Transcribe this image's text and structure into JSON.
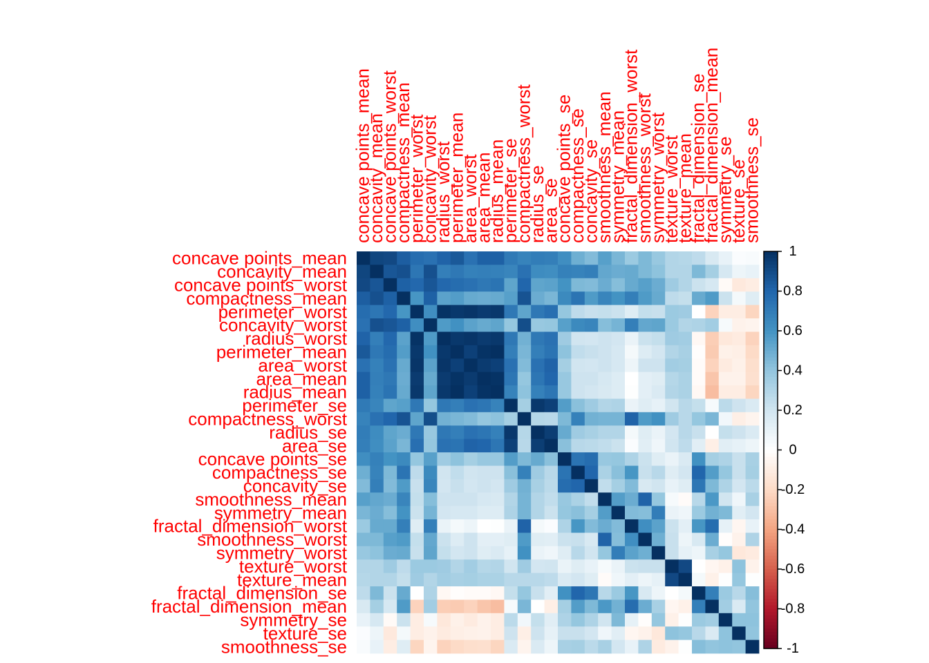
{
  "chart_data": {
    "type": "heatmap",
    "title": "",
    "variables": [
      "concave points_mean",
      "concavity_mean",
      "concave points_worst",
      "compactness_mean",
      "perimeter_worst",
      "concavity_worst",
      "radius_worst",
      "perimeter_mean",
      "area_worst",
      "area_mean",
      "radius_mean",
      "perimeter_se",
      "compactness_worst",
      "radius_se",
      "area_se",
      "concave points_se",
      "compactness_se",
      "concavity_se",
      "smoothness_mean",
      "symmetry_mean",
      "fractal_dimension_worst",
      "smoothness_worst",
      "symmetry_worst",
      "texture_worst",
      "texture_mean",
      "fractal_dimension_se",
      "fractal_dimension_mean",
      "symmetry_se",
      "texture_se",
      "smoothness_se"
    ],
    "matrix": [
      [
        1,
        0.92,
        0.91,
        0.83,
        0.77,
        0.75,
        0.81,
        0.85,
        0.75,
        0.82,
        0.82,
        0.71,
        0.67,
        0.7,
        0.69,
        0.62,
        0.49,
        0.44,
        0.55,
        0.46,
        0.37,
        0.45,
        0.38,
        0.3,
        0.29,
        0.26,
        0.17,
        0.1,
        0.02,
        0.03
      ],
      [
        0.92,
        1,
        0.86,
        0.88,
        0.73,
        0.88,
        0.69,
        0.72,
        0.68,
        0.69,
        0.68,
        0.66,
        0.75,
        0.63,
        0.62,
        0.68,
        0.67,
        0.69,
        0.52,
        0.5,
        0.51,
        0.45,
        0.41,
        0.3,
        0.3,
        0.45,
        0.34,
        0.18,
        0.08,
        0.1
      ],
      [
        0.91,
        0.86,
        1,
        0.82,
        0.79,
        0.86,
        0.79,
        0.77,
        0.75,
        0.72,
        0.74,
        0.53,
        0.8,
        0.53,
        0.54,
        0.6,
        0.45,
        0.44,
        0.5,
        0.43,
        0.51,
        0.55,
        0.5,
        0.36,
        0.3,
        0.22,
        0.18,
        -0.03,
        -0.12,
        -0.1
      ],
      [
        0.83,
        0.88,
        0.82,
        1,
        0.59,
        0.82,
        0.54,
        0.56,
        0.51,
        0.5,
        0.51,
        0.55,
        0.87,
        0.5,
        0.46,
        0.64,
        0.74,
        0.57,
        0.66,
        0.6,
        0.69,
        0.57,
        0.51,
        0.26,
        0.24,
        0.51,
        0.57,
        0.22,
        0.05,
        0.14
      ],
      [
        0.77,
        0.73,
        0.79,
        0.59,
        1,
        0.62,
        0.99,
        0.97,
        0.98,
        0.96,
        0.97,
        0.72,
        0.53,
        0.72,
        0.76,
        0.39,
        0.26,
        0.23,
        0.24,
        0.22,
        0.14,
        0.24,
        0.23,
        0.37,
        0.36,
        0,
        -0.23,
        -0.1,
        -0.1,
        -0.22
      ],
      [
        0.75,
        0.88,
        0.86,
        0.82,
        0.62,
        1,
        0.57,
        0.61,
        0.54,
        0.51,
        0.53,
        0.39,
        0.89,
        0.38,
        0.39,
        0.55,
        0.64,
        0.66,
        0.43,
        0.47,
        0.69,
        0.52,
        0.53,
        0.37,
        0.3,
        0.31,
        0.35,
        0.04,
        -0.07,
        -0.06
      ],
      [
        0.81,
        0.69,
        0.79,
        0.54,
        0.99,
        0.57,
        1,
        0.97,
        0.98,
        0.96,
        0.97,
        0.72,
        0.48,
        0.72,
        0.75,
        0.36,
        0.2,
        0.19,
        0.21,
        0.19,
        0.09,
        0.22,
        0.24,
        0.36,
        0.35,
        -0.04,
        -0.25,
        -0.13,
        -0.11,
        -0.23
      ],
      [
        0.85,
        0.72,
        0.77,
        0.56,
        0.97,
        0.61,
        0.97,
        1,
        0.94,
        0.99,
        1,
        0.69,
        0.46,
        0.69,
        0.74,
        0.41,
        0.25,
        0.23,
        0.21,
        0.18,
        0.05,
        0.15,
        0.19,
        0.3,
        0.33,
        -0.01,
        -0.26,
        -0.08,
        -0.09,
        -0.2
      ],
      [
        0.75,
        0.68,
        0.75,
        0.51,
        0.98,
        0.54,
        0.98,
        0.94,
        1,
        0.96,
        0.94,
        0.75,
        0.44,
        0.75,
        0.81,
        0.34,
        0.2,
        0.19,
        0.21,
        0.18,
        0.08,
        0.21,
        0.21,
        0.35,
        0.34,
        -0.02,
        -0.23,
        -0.11,
        -0.08,
        -0.18
      ],
      [
        0.82,
        0.69,
        0.72,
        0.5,
        0.96,
        0.51,
        0.96,
        0.99,
        0.96,
        1,
        0.99,
        0.73,
        0.39,
        0.73,
        0.8,
        0.38,
        0.21,
        0.21,
        0.18,
        0.15,
        0,
        0.12,
        0.14,
        0.29,
        0.32,
        -0.02,
        -0.28,
        -0.07,
        -0.07,
        -0.17
      ],
      [
        0.82,
        0.68,
        0.74,
        0.51,
        0.97,
        0.53,
        0.97,
        1,
        0.94,
        0.99,
        1,
        0.67,
        0.41,
        0.68,
        0.73,
        0.38,
        0.21,
        0.19,
        0.17,
        0.15,
        0.01,
        0.12,
        0.16,
        0.3,
        0.32,
        -0.04,
        -0.31,
        -0.1,
        -0.1,
        -0.22
      ],
      [
        0.71,
        0.66,
        0.53,
        0.55,
        0.72,
        0.39,
        0.72,
        0.69,
        0.75,
        0.73,
        0.67,
        1,
        0.34,
        0.97,
        0.94,
        0.56,
        0.42,
        0.36,
        0.3,
        0.31,
        0.09,
        0.14,
        0.11,
        0.2,
        0.28,
        0.24,
        0.04,
        0.27,
        0.21,
        0.16
      ],
      [
        0.67,
        0.75,
        0.8,
        0.87,
        0.53,
        0.89,
        0.48,
        0.46,
        0.44,
        0.39,
        0.41,
        0.34,
        1,
        0.29,
        0.28,
        0.45,
        0.68,
        0.48,
        0.47,
        0.47,
        0.81,
        0.57,
        0.61,
        0.36,
        0.28,
        0.39,
        0.46,
        0.06,
        -0.09,
        -0.06
      ],
      [
        0.7,
        0.63,
        0.53,
        0.5,
        0.72,
        0.38,
        0.72,
        0.69,
        0.75,
        0.73,
        0.68,
        0.97,
        0.29,
        1,
        0.95,
        0.51,
        0.36,
        0.33,
        0.3,
        0.3,
        0.05,
        0.14,
        0.09,
        0.19,
        0.28,
        0.23,
        0,
        0.24,
        0.21,
        0.16
      ],
      [
        0.69,
        0.62,
        0.54,
        0.46,
        0.76,
        0.39,
        0.75,
        0.74,
        0.81,
        0.8,
        0.73,
        0.94,
        0.28,
        0.95,
        1,
        0.42,
        0.28,
        0.27,
        0.25,
        0.22,
        0.02,
        0.13,
        0.07,
        0.2,
        0.26,
        0.13,
        -0.09,
        0.13,
        0.11,
        0.08
      ],
      [
        0.62,
        0.68,
        0.6,
        0.64,
        0.39,
        0.55,
        0.36,
        0.41,
        0.34,
        0.38,
        0.38,
        0.56,
        0.45,
        0.51,
        0.42,
        1,
        0.74,
        0.77,
        0.38,
        0.39,
        0.31,
        0.22,
        0.14,
        0.09,
        0.16,
        0.61,
        0.34,
        0.31,
        0.23,
        0.33
      ],
      [
        0.49,
        0.67,
        0.45,
        0.74,
        0.26,
        0.64,
        0.2,
        0.25,
        0.2,
        0.21,
        0.21,
        0.42,
        0.68,
        0.36,
        0.28,
        0.74,
        1,
        0.8,
        0.32,
        0.42,
        0.59,
        0.23,
        0.28,
        0.14,
        0.19,
        0.8,
        0.56,
        0.39,
        0.23,
        0.34
      ],
      [
        0.44,
        0.69,
        0.44,
        0.57,
        0.23,
        0.66,
        0.19,
        0.23,
        0.19,
        0.21,
        0.19,
        0.36,
        0.48,
        0.33,
        0.27,
        0.77,
        0.8,
        1,
        0.25,
        0.34,
        0.44,
        0.17,
        0.2,
        0.1,
        0.14,
        0.73,
        0.45,
        0.31,
        0.19,
        0.27
      ],
      [
        0.55,
        0.52,
        0.5,
        0.66,
        0.24,
        0.43,
        0.21,
        0.21,
        0.21,
        0.18,
        0.17,
        0.3,
        0.47,
        0.3,
        0.25,
        0.38,
        0.32,
        0.25,
        1,
        0.56,
        0.5,
        0.81,
        0.39,
        0.04,
        -0.02,
        0.28,
        0.58,
        0.2,
        0.07,
        0.33
      ],
      [
        0.46,
        0.5,
        0.43,
        0.6,
        0.22,
        0.47,
        0.19,
        0.18,
        0.18,
        0.15,
        0.15,
        0.31,
        0.47,
        0.3,
        0.22,
        0.39,
        0.42,
        0.34,
        0.56,
        1,
        0.44,
        0.43,
        0.7,
        0.09,
        0.07,
        0.37,
        0.48,
        0.45,
        0.13,
        0.19
      ],
      [
        0.37,
        0.51,
        0.51,
        0.69,
        0.14,
        0.69,
        0.09,
        0.05,
        0.08,
        0,
        0.01,
        0.09,
        0.81,
        0.05,
        0.02,
        0.31,
        0.59,
        0.44,
        0.5,
        0.44,
        1,
        0.62,
        0.54,
        0.22,
        0.12,
        0.59,
        0.77,
        0.11,
        -0.05,
        0.1
      ],
      [
        0.45,
        0.45,
        0.55,
        0.57,
        0.24,
        0.52,
        0.22,
        0.15,
        0.21,
        0.12,
        0.12,
        0.14,
        0.57,
        0.14,
        0.13,
        0.22,
        0.23,
        0.17,
        0.81,
        0.43,
        0.62,
        1,
        0.49,
        0.23,
        0.08,
        0.17,
        0.5,
        -0.01,
        -0.07,
        0.31
      ],
      [
        0.38,
        0.41,
        0.5,
        0.51,
        0.23,
        0.53,
        0.24,
        0.19,
        0.21,
        0.14,
        0.16,
        0.11,
        0.61,
        0.09,
        0.07,
        0.14,
        0.28,
        0.2,
        0.39,
        0.7,
        0.54,
        0.49,
        1,
        0.23,
        0.11,
        0.08,
        0.33,
        0.39,
        -0.13,
        -0.11
      ],
      [
        0.3,
        0.3,
        0.36,
        0.26,
        0.37,
        0.37,
        0.36,
        0.3,
        0.35,
        0.29,
        0.3,
        0.2,
        0.36,
        0.19,
        0.2,
        0.09,
        0.14,
        0.1,
        0.04,
        0.09,
        0.22,
        0.23,
        0.23,
        1,
        0.91,
        -0.0,
        -0.05,
        -0.08,
        0.41,
        -0.07
      ],
      [
        0.29,
        0.3,
        0.3,
        0.24,
        0.36,
        0.3,
        0.35,
        0.33,
        0.34,
        0.32,
        0.32,
        0.28,
        0.28,
        0.28,
        0.26,
        0.16,
        0.19,
        0.14,
        -0.02,
        0.07,
        0.12,
        0.08,
        0.11,
        0.91,
        1,
        0.05,
        -0.08,
        0.01,
        0.39,
        0.01
      ],
      [
        0.26,
        0.45,
        0.22,
        0.51,
        0,
        0.31,
        -0.04,
        -0.01,
        -0.02,
        -0.02,
        -0.04,
        0.24,
        0.39,
        0.23,
        0.13,
        0.61,
        0.8,
        0.73,
        0.28,
        0.37,
        0.59,
        0.17,
        0.08,
        -0.0,
        0.05,
        1,
        0.69,
        0.37,
        0.28,
        0.43
      ],
      [
        0.17,
        0.34,
        0.18,
        0.57,
        -0.23,
        0.35,
        -0.25,
        -0.26,
        -0.23,
        -0.28,
        -0.31,
        0.04,
        0.46,
        0,
        -0.09,
        0.34,
        0.56,
        0.45,
        0.58,
        0.48,
        0.77,
        0.5,
        0.33,
        -0.05,
        -0.08,
        0.69,
        1,
        0.35,
        0.16,
        0.4
      ],
      [
        0.1,
        0.18,
        -0.03,
        0.22,
        -0.1,
        0.04,
        -0.13,
        -0.08,
        -0.11,
        -0.07,
        -0.1,
        0.27,
        0.06,
        0.24,
        0.13,
        0.31,
        0.39,
        0.31,
        0.2,
        0.45,
        0.11,
        -0.01,
        0.39,
        -0.08,
        0.01,
        0.37,
        0.35,
        1,
        0.41,
        0.41
      ],
      [
        0.02,
        0.08,
        -0.12,
        0.05,
        -0.1,
        -0.07,
        -0.11,
        -0.09,
        -0.08,
        -0.07,
        -0.1,
        0.21,
        -0.09,
        0.21,
        0.11,
        0.23,
        0.23,
        0.19,
        0.07,
        0.13,
        -0.05,
        -0.07,
        -0.13,
        0.41,
        0.39,
        0.28,
        0.16,
        0.41,
        1,
        0.4
      ],
      [
        0.03,
        0.1,
        -0.1,
        0.14,
        -0.22,
        -0.06,
        -0.23,
        -0.2,
        -0.18,
        -0.17,
        -0.22,
        0.16,
        -0.06,
        0.16,
        0.08,
        0.33,
        0.34,
        0.27,
        0.33,
        0.19,
        0.1,
        0.31,
        -0.11,
        -0.07,
        0.01,
        0.43,
        0.4,
        0.41,
        0.4,
        1
      ]
    ],
    "colorbar": {
      "min": -1,
      "max": 1,
      "ticks": [
        "1",
        "0.8",
        "0.6",
        "0.4",
        "0.2",
        "0",
        "-0.2",
        "-0.4",
        "-0.6",
        "-0.8",
        "-1"
      ]
    },
    "label_color": "#ff0000",
    "colorscale": [
      "#67001f",
      "#b2182b",
      "#d6604d",
      "#f4a582",
      "#fddbc7",
      "#ffffff",
      "#d1e5f0",
      "#92c5de",
      "#4393c3",
      "#2166ac",
      "#053061"
    ]
  }
}
